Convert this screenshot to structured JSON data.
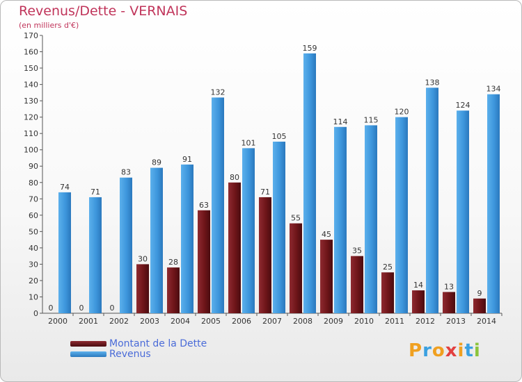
{
  "title": "Revenus/Dette - VERNAIS",
  "subtitle": "(en milliers d'€)",
  "colors": {
    "debt": "#7a1c22",
    "revenue": "#3d96dc",
    "title": "#c0345a",
    "legend_text": "#4a6bd8"
  },
  "logo": {
    "text": "Proxiti",
    "letters": [
      {
        "ch": "P",
        "color": "#f0a020"
      },
      {
        "ch": "r",
        "color": "#3aa0e0"
      },
      {
        "ch": "o",
        "color": "#f0a020"
      },
      {
        "ch": "x",
        "color": "#e24040"
      },
      {
        "ch": "i",
        "color": "#f0a020"
      },
      {
        "ch": "t",
        "color": "#3aa0e0"
      },
      {
        "ch": "i",
        "color": "#8cc43c"
      }
    ]
  },
  "chart_data": {
    "type": "bar",
    "title": "Revenus/Dette - VERNAIS",
    "subtitle": "(en milliers d'€)",
    "categories": [
      "2000",
      "2001",
      "2002",
      "2003",
      "2004",
      "2005",
      "2006",
      "2007",
      "2008",
      "2009",
      "2010",
      "2011",
      "2012",
      "2013",
      "2014"
    ],
    "series": [
      {
        "name": "Montant de la Dette",
        "color": "#7a1c22",
        "values": [
          0,
          0,
          0,
          30,
          28,
          63,
          80,
          71,
          55,
          45,
          35,
          25,
          14,
          13,
          9
        ]
      },
      {
        "name": "Revenus",
        "color": "#3d96dc",
        "values": [
          74,
          71,
          83,
          89,
          91,
          132,
          101,
          105,
          159,
          114,
          115,
          120,
          138,
          124,
          134
        ]
      }
    ],
    "ylim": [
      0,
      170
    ],
    "yticks": [
      0,
      10,
      20,
      30,
      40,
      50,
      60,
      70,
      80,
      90,
      100,
      110,
      120,
      130,
      140,
      150,
      160,
      170
    ],
    "grid": false,
    "legend_position": "bottom-left"
  }
}
